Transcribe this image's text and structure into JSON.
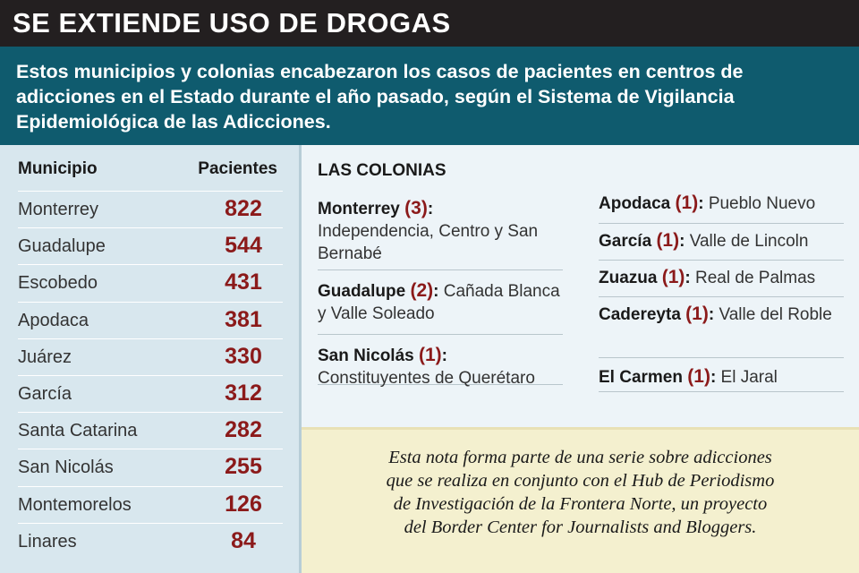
{
  "header": {
    "title": "SE EXTIENDE USO DE DROGAS",
    "intro": "Estos municipios y colonias encabezaron los casos de pacientes en centros de adicciones en el Estado durante el año pasado, según el Sistema de Vigilancia Epidemiológica de las Adicciones."
  },
  "table": {
    "col_municipio": "Municipio",
    "col_pacientes": "Pacientes",
    "rows": [
      {
        "municipio": "Monterrey",
        "pacientes": "822"
      },
      {
        "municipio": "Guadalupe",
        "pacientes": "544"
      },
      {
        "municipio": "Escobedo",
        "pacientes": "431"
      },
      {
        "municipio": "Apodaca",
        "pacientes": "381"
      },
      {
        "municipio": "Juárez",
        "pacientes": "330"
      },
      {
        "municipio": "García",
        "pacientes": "312"
      },
      {
        "municipio": "Santa Catarina",
        "pacientes": "282"
      },
      {
        "municipio": "San Nicolás",
        "pacientes": "255"
      },
      {
        "municipio": "Montemorelos",
        "pacientes": "126"
      },
      {
        "municipio": "Linares",
        "pacientes": "84"
      }
    ]
  },
  "colonias": {
    "title": "LAS COLONIAS",
    "left": [
      {
        "name": "Monterrey",
        "count": "(3)",
        "colon": ":",
        "text": "Independencia, Centro y San Bernabé"
      },
      {
        "name": "Guadalupe",
        "count": "(2)",
        "colon": ":",
        "text": "Cañada Blanca y Valle Soleado"
      },
      {
        "name": "San Nicolás",
        "count": "(1)",
        "colon": ":",
        "text": "Constituyentes de Querétaro"
      }
    ],
    "right": [
      {
        "name": "Apodaca",
        "count": "(1)",
        "colon": ":",
        "text": "Pueblo Nuevo"
      },
      {
        "name": "García",
        "count": "(1)",
        "colon": ":",
        "text": "Valle de Lincoln"
      },
      {
        "name": "Zuazua",
        "count": "(1)",
        "colon": ":",
        "text": "Real de Palmas"
      },
      {
        "name": "Cadereyta",
        "count": "(1)",
        "colon": ":",
        "text": "Valle del Roble"
      },
      {
        "name": "El Carmen",
        "count": "(1)",
        "colon": ":",
        "text": "El Jaral"
      }
    ]
  },
  "note": {
    "line1": "Esta nota forma parte de una serie sobre adicciones",
    "line2": "que se realiza en conjunto con el Hub de Periodismo",
    "line3": "de Investigación de la Frontera Norte, un proyecto",
    "line4": "del Border Center for Journalists and Bloggers."
  },
  "colors": {
    "title_bg": "#231f20",
    "intro_bg": "#0f5b6e",
    "accent_red": "#8b1a1a",
    "table_bg": "#d8e7ee",
    "note_bg": "#f4f0cf"
  }
}
